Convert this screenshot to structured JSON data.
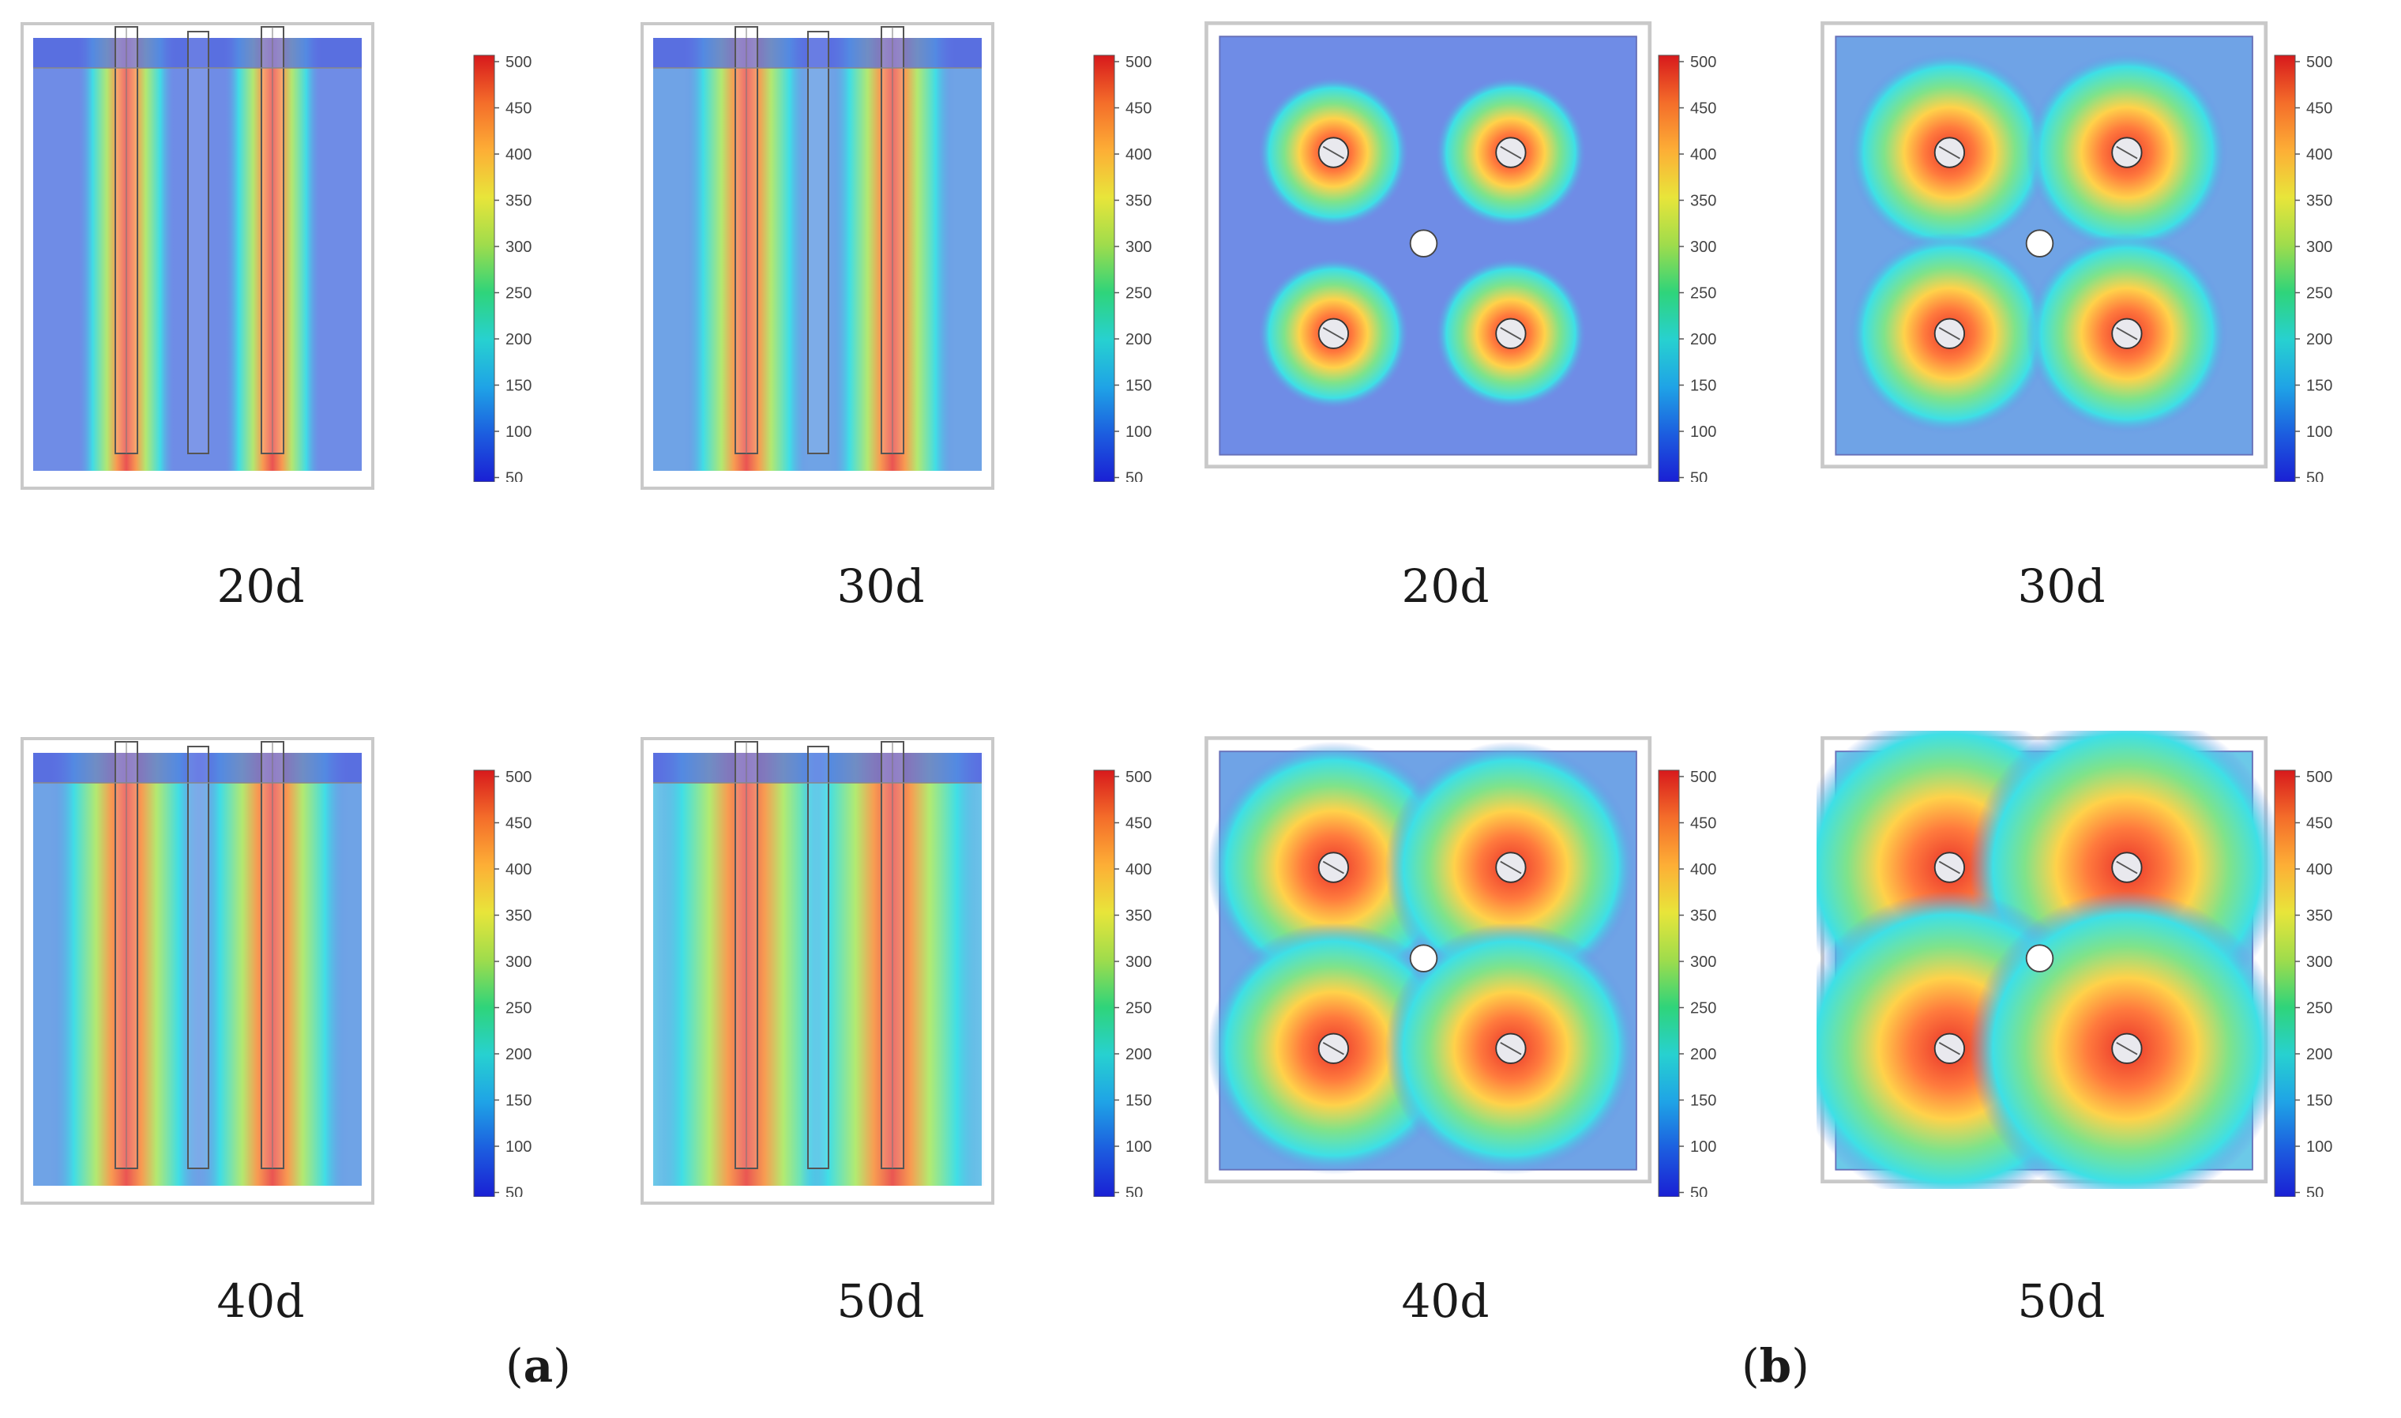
{
  "colorbar": {
    "ticks": [
      "500",
      "450",
      "400",
      "350",
      "300",
      "250",
      "200",
      "150",
      "100",
      "50"
    ],
    "colors": [
      "#d7191c",
      "#f46d2a",
      "#fdae36",
      "#e8e53a",
      "#9fdc4c",
      "#2fd47a",
      "#27d1d0",
      "#1fa3e6",
      "#1c5ddf",
      "#1a1fd4"
    ]
  },
  "group_a": {
    "label_open": "(",
    "label_letter": "a",
    "label_close": ")",
    "panels": [
      {
        "day": "20d",
        "spread": 0.25
      },
      {
        "day": "30d",
        "spread": 0.45
      },
      {
        "day": "40d",
        "spread": 0.65
      },
      {
        "day": "50d",
        "spread": 0.9
      }
    ]
  },
  "group_b": {
    "label_open": "(",
    "label_letter": "b",
    "label_close": ")",
    "panels": [
      {
        "day": "20d",
        "spread": 0.25
      },
      {
        "day": "30d",
        "spread": 0.45
      },
      {
        "day": "40d",
        "spread": 0.65
      },
      {
        "day": "50d",
        "spread": 0.9
      }
    ]
  }
}
